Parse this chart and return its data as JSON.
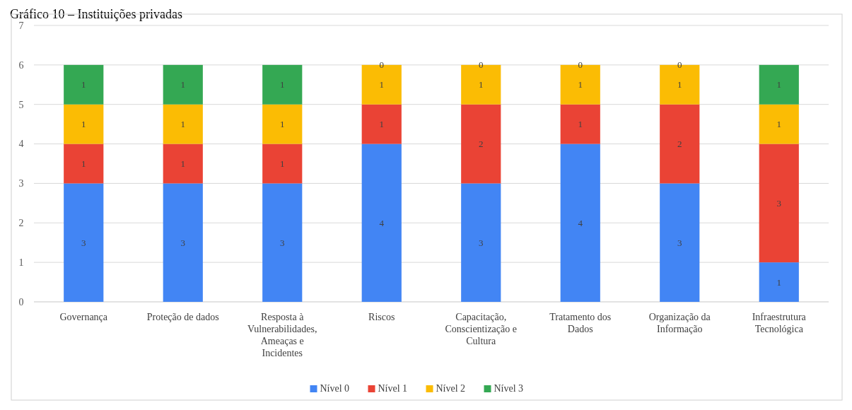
{
  "chart_data": {
    "type": "bar",
    "title": "Gráfico 10 – Instituições privadas",
    "stacked": true,
    "categories": [
      "Governança",
      "Proteção de dados",
      "Resposta à Vulnerabilidades, Ameaças e Incidentes",
      "Riscos",
      "Capacitação, Conscientização e Cultura",
      "Tratamento dos Dados",
      "Organização da Informação",
      "Infraestrutura Tecnológica"
    ],
    "series": [
      {
        "name": "Nível 0",
        "color": "#4285f4",
        "values": [
          3,
          3,
          3,
          4,
          3,
          4,
          3,
          1
        ]
      },
      {
        "name": "Nível 1",
        "color": "#ea4335",
        "values": [
          1,
          1,
          1,
          1,
          2,
          1,
          2,
          3
        ]
      },
      {
        "name": "Nível 2",
        "color": "#fbbc04",
        "values": [
          1,
          1,
          1,
          1,
          1,
          1,
          1,
          1
        ]
      },
      {
        "name": "Nível 3",
        "color": "#34a853",
        "values": [
          1,
          1,
          1,
          0,
          0,
          0,
          0,
          1
        ]
      }
    ],
    "ylim": [
      0,
      7
    ],
    "yticks": [
      0,
      1,
      2,
      3,
      4,
      5,
      6,
      7
    ],
    "grid": "y",
    "legend": "bottom",
    "data_labels": true
  }
}
